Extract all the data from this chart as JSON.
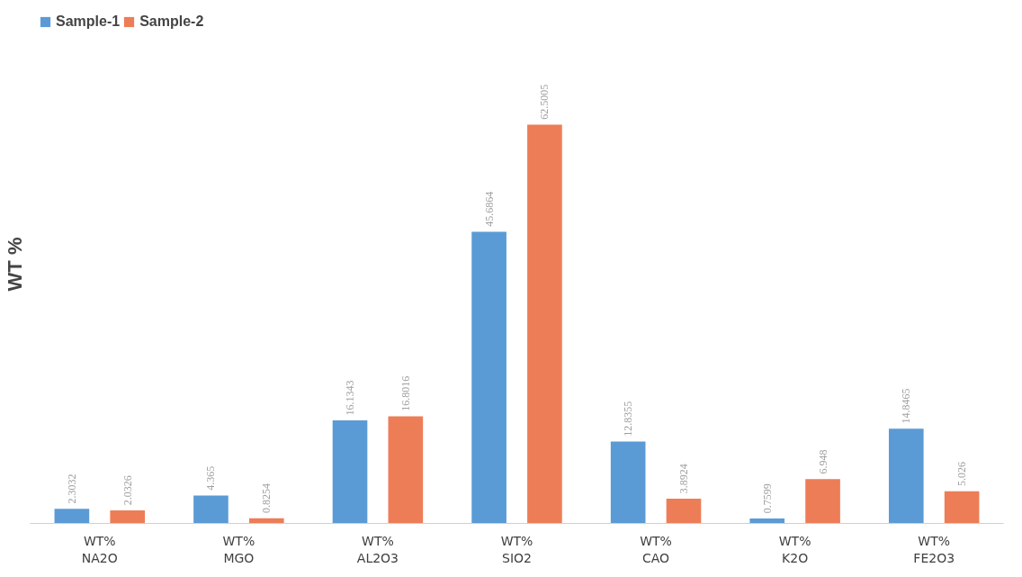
{
  "chart_data": {
    "type": "bar",
    "ylabel": "WT %",
    "categories": [
      "WT%\nNA2O",
      "WT%\nMGO",
      "WT%\nAL2O3",
      "WT%\nSIO2",
      "WT%\nCAO",
      "WT%\nK2O",
      "WT%\nFE2O3"
    ],
    "series": [
      {
        "name": "Sample-1",
        "color": "#5b9bd5",
        "values": [
          2.3032,
          4.365,
          16.1343,
          45.6864,
          12.8355,
          0.7599,
          14.8465
        ]
      },
      {
        "name": "Sample-2",
        "color": "#ed7d57",
        "values": [
          2.0326,
          0.8254,
          16.8016,
          62.5005,
          3.8924,
          6.948,
          5.026
        ]
      }
    ],
    "data_labels": true,
    "legend": "top left",
    "grid": false
  }
}
